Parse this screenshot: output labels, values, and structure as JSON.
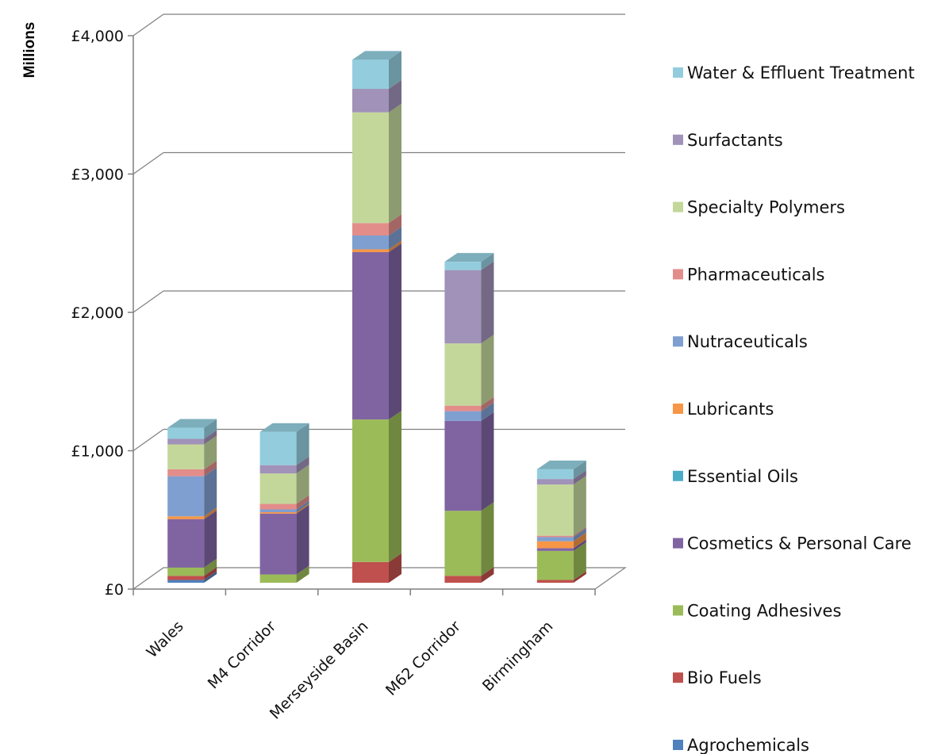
{
  "chart_data": {
    "type": "bar",
    "stacked": true,
    "three_d": true,
    "title": "",
    "ylabel": "Millions",
    "xlabel": "",
    "ylim": [
      0,
      4000
    ],
    "y_ticks": [
      0,
      1000,
      2000,
      3000,
      4000
    ],
    "y_tick_labels": [
      "£0",
      "£1,000",
      "£2,000",
      "£3,000",
      "£4,000"
    ],
    "grid": true,
    "legend_position": "right",
    "categories": [
      "Wales",
      "M4 Corridor",
      "Merseyside Basin",
      "M62 Corridor",
      "Birmingham"
    ],
    "series": [
      {
        "name": "Agrochemicals",
        "color": "#4F81BD",
        "values": [
          20,
          0,
          0,
          0,
          0
        ]
      },
      {
        "name": "Bio Fuels",
        "color": "#C0504D",
        "values": [
          30,
          0,
          150,
          50,
          20
        ]
      },
      {
        "name": "Coating Adhesives",
        "color": "#9BBB59",
        "values": [
          60,
          60,
          1030,
          470,
          210
        ]
      },
      {
        "name": "Cosmetics & Personal Care",
        "color": "#8064A2",
        "values": [
          350,
          440,
          1210,
          650,
          20
        ]
      },
      {
        "name": "Essential Oils",
        "color": "#4BACC6",
        "values": [
          0,
          0,
          0,
          0,
          0
        ]
      },
      {
        "name": "Lubricants",
        "color": "#F79646",
        "values": [
          20,
          10,
          20,
          0,
          50
        ]
      },
      {
        "name": "Nutraceuticals",
        "color": "#7F9FD0",
        "values": [
          290,
          20,
          100,
          70,
          30
        ]
      },
      {
        "name": "Pharmaceuticals",
        "color": "#E38D8B",
        "values": [
          50,
          40,
          90,
          40,
          10
        ]
      },
      {
        "name": "Specialty Polymers",
        "color": "#C4D79B",
        "values": [
          180,
          220,
          800,
          450,
          370
        ]
      },
      {
        "name": "Surfactants",
        "color": "#A092B8",
        "values": [
          40,
          60,
          170,
          530,
          40
        ]
      },
      {
        "name": "Water & Effluent Treatment",
        "color": "#93CDDD",
        "values": [
          80,
          240,
          210,
          60,
          70
        ]
      }
    ]
  }
}
